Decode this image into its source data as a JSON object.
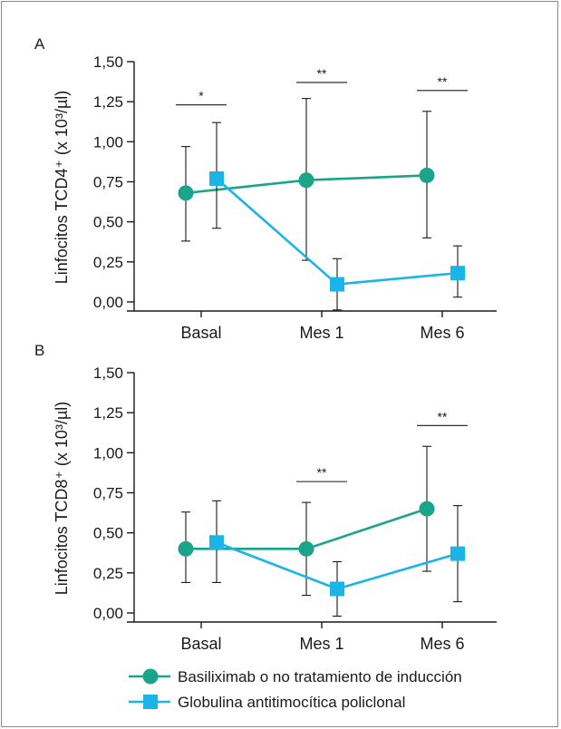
{
  "colors": {
    "series_a": "#1aa58a",
    "series_b": "#1ab4e6",
    "axis": "#1a1a1a",
    "frame": "#5b9bb8"
  },
  "legend": [
    {
      "label": "Basiliximab o no tratamiento de inducción",
      "marker": "circle",
      "color": "#1aa58a"
    },
    {
      "label": "Globulina antitimocítica policlonal",
      "marker": "square",
      "color": "#1ab4e6"
    }
  ],
  "chart_data": [
    {
      "type": "line",
      "panel_label": "A",
      "ylabel": "Linfocitos TCD4⁺ (x 10³/µl)",
      "categories": [
        "Basal",
        "Mes 1",
        "Mes 6"
      ],
      "ylim": [
        0,
        1.5
      ],
      "yticks": [
        "0,00",
        "0,25",
        "0,50",
        "0,75",
        "1,00",
        "1,25",
        "1,50"
      ],
      "grid": false,
      "series": [
        {
          "name": "Basiliximab o no tratamiento de inducción",
          "values": [
            0.68,
            0.76,
            0.79
          ],
          "err_low": [
            0.38,
            0.26,
            0.4
          ],
          "err_high": [
            0.97,
            1.27,
            1.19
          ]
        },
        {
          "name": "Globulina antitimocítica policlonal",
          "values": [
            0.77,
            0.11,
            0.18
          ],
          "err_low": [
            0.46,
            -0.05,
            0.03
          ],
          "err_high": [
            1.12,
            0.27,
            0.35
          ]
        }
      ],
      "significance": [
        {
          "category": 0,
          "y": 1.23,
          "label": "*"
        },
        {
          "category": 1,
          "y": 1.37,
          "label": "**"
        },
        {
          "category": 2,
          "y": 1.32,
          "label": "**"
        }
      ]
    },
    {
      "type": "line",
      "panel_label": "B",
      "ylabel": "Linfocitos TCD8⁺ (x 10³/µl)",
      "categories": [
        "Basal",
        "Mes 1",
        "Mes 6"
      ],
      "ylim": [
        0,
        1.5
      ],
      "yticks": [
        "0,00",
        "0,25",
        "0,50",
        "0,75",
        "1,00",
        "1,25",
        "1,50"
      ],
      "grid": false,
      "series": [
        {
          "name": "Basiliximab o no tratamiento de inducción",
          "values": [
            0.4,
            0.4,
            0.65
          ],
          "err_low": [
            0.19,
            0.11,
            0.26
          ],
          "err_high": [
            0.63,
            0.69,
            1.04
          ]
        },
        {
          "name": "Globulina antitimocítica policlonal",
          "values": [
            0.44,
            0.15,
            0.37
          ],
          "err_low": [
            0.19,
            -0.02,
            0.07
          ],
          "err_high": [
            0.7,
            0.32,
            0.67
          ]
        }
      ],
      "significance": [
        {
          "category": 1,
          "y": 0.82,
          "label": "**"
        },
        {
          "category": 2,
          "y": 1.17,
          "label": "**"
        }
      ]
    }
  ]
}
